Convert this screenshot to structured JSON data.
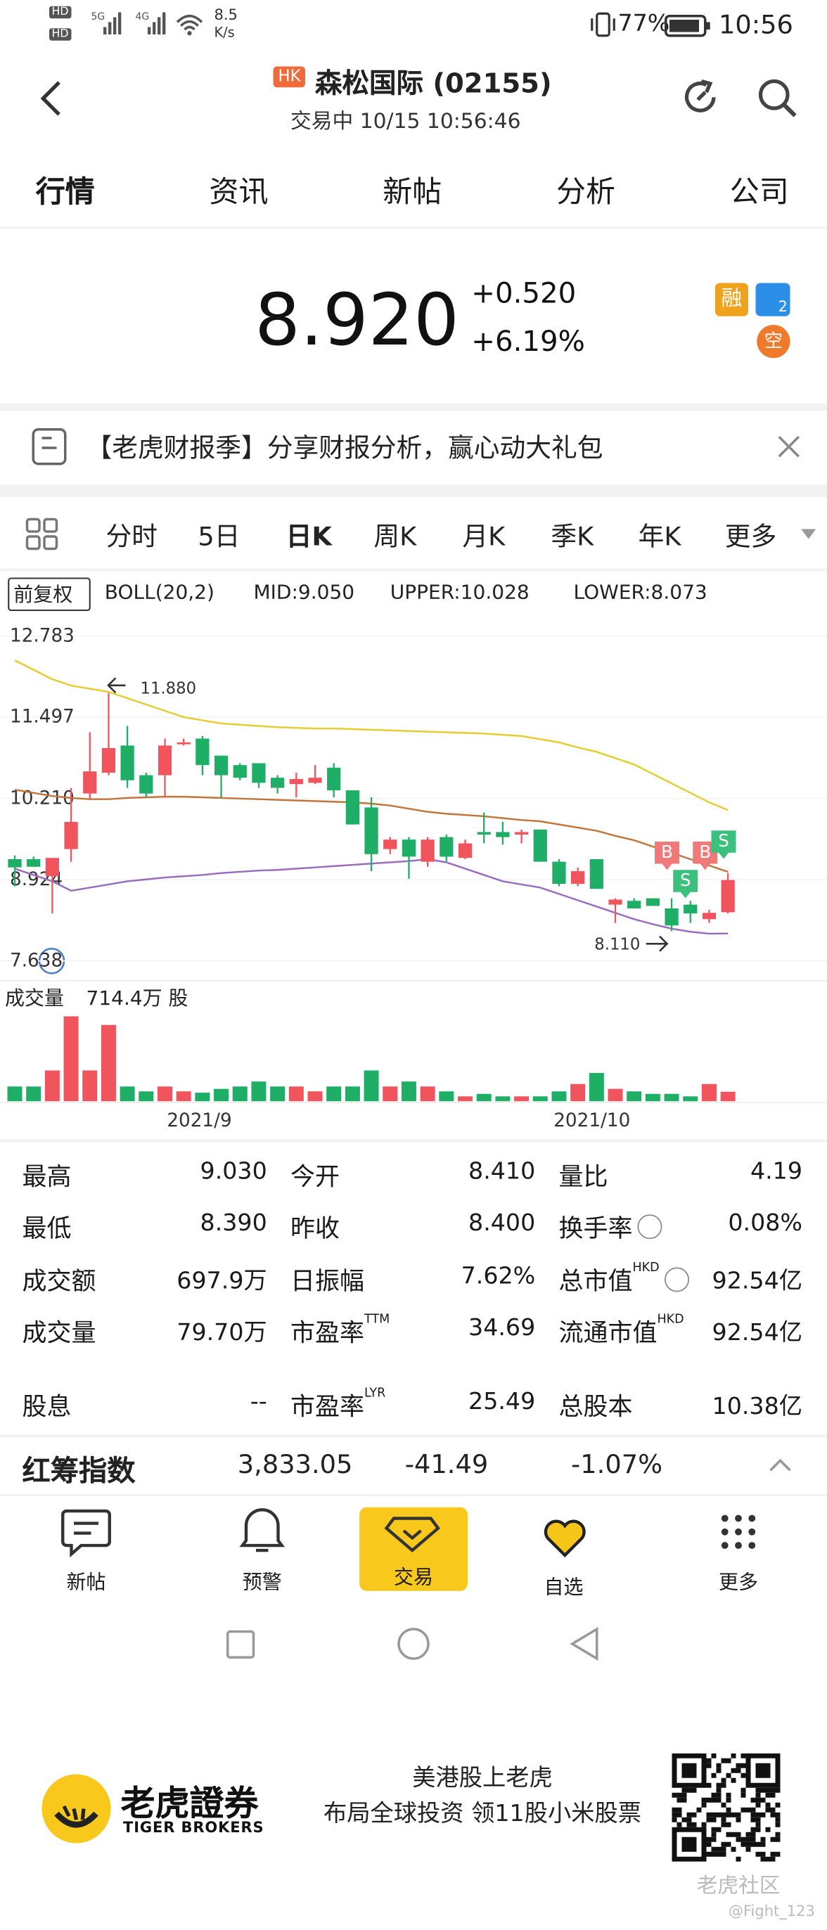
{
  "status": {
    "hd": [
      "HD",
      "HD"
    ],
    "net": [
      "5G",
      "4G"
    ],
    "speed": "8.5",
    "speed_unit": "K/s",
    "battery": "77%",
    "time": "10:56"
  },
  "header": {
    "badge": "HK",
    "name": "森松国际 (02155)",
    "status": "交易中 10/15 10:56:46"
  },
  "tabs": [
    "行情",
    "资讯",
    "新帖",
    "分析",
    "公司"
  ],
  "quote": {
    "price": "8.920",
    "change": "+0.520",
    "change_pct": "+6.19%",
    "badges": [
      "融",
      "空"
    ],
    "badge2": "2"
  },
  "banner": "【老虎财报季】分享财报分析，赢心动大礼包",
  "periods": [
    "分时",
    "5日",
    "日K",
    "周K",
    "月K",
    "季K",
    "年K",
    "更多"
  ],
  "chart_data": {
    "type": "candlestick",
    "adjust": "前复权",
    "indicator": "BOLL(20,2)",
    "mid_label": "MID:9.050",
    "upper_label": "UPPER:10.028",
    "lower_label": "LOWER:8.073",
    "ylim": [
      7.638,
      12.783
    ],
    "yticks": [
      12.783,
      11.497,
      {
        "value": 10.21,
        "label": "10.210"
      },
      8.924,
      7.638
    ],
    "up_color": "#f0545c",
    "down_color": "#1fae66",
    "ohlc": [
      [
        9.25,
        9.31,
        8.82,
        9.12
      ],
      [
        9.25,
        9.29,
        9.13,
        9.13
      ],
      [
        8.98,
        9.27,
        8.39,
        9.27
      ],
      [
        9.41,
        10.38,
        9.21,
        9.84
      ],
      [
        10.29,
        11.26,
        10.19,
        10.64
      ],
      [
        10.62,
        11.88,
        10.58,
        11.01
      ],
      [
        11.05,
        11.36,
        10.38,
        10.5
      ],
      [
        10.58,
        10.62,
        10.23,
        10.29
      ],
      [
        10.58,
        11.16,
        10.23,
        11.05
      ],
      [
        11.07,
        11.16,
        11.05,
        11.1
      ],
      [
        11.16,
        11.2,
        10.58,
        10.74
      ],
      [
        10.89,
        10.89,
        10.23,
        10.58
      ],
      [
        10.74,
        10.77,
        10.5,
        10.54
      ],
      [
        10.77,
        10.77,
        10.38,
        10.46
      ],
      [
        10.54,
        10.58,
        10.29,
        10.38
      ],
      [
        10.44,
        10.62,
        10.23,
        10.52
      ],
      [
        10.46,
        10.74,
        10.44,
        10.54
      ],
      [
        10.7,
        10.77,
        10.23,
        10.34
      ],
      [
        10.34,
        10.34,
        9.8,
        9.8
      ],
      [
        10.07,
        10.23,
        9.06,
        9.33
      ],
      [
        9.41,
        9.6,
        9.33,
        9.56
      ],
      [
        9.56,
        9.6,
        8.94,
        9.29
      ],
      [
        9.21,
        9.6,
        9.13,
        9.56
      ],
      [
        9.6,
        9.64,
        9.21,
        9.29
      ],
      [
        9.27,
        9.56,
        9.25,
        9.5
      ],
      [
        9.68,
        9.99,
        9.5,
        9.64
      ],
      [
        9.68,
        9.84,
        9.48,
        9.6
      ],
      [
        9.64,
        9.72,
        9.5,
        9.68
      ],
      [
        9.72,
        9.72,
        9.21,
        9.21
      ],
      [
        9.21,
        9.25,
        8.82,
        8.86
      ],
      [
        8.86,
        9.12,
        8.82,
        9.06
      ],
      [
        9.25,
        9.25,
        8.78,
        8.78
      ],
      [
        8.53,
        8.63,
        8.24,
        8.61
      ],
      [
        8.59,
        8.63,
        8.47,
        8.47
      ],
      [
        8.63,
        8.63,
        8.51,
        8.51
      ],
      [
        8.47,
        8.63,
        8.11,
        8.2
      ],
      [
        8.53,
        8.59,
        8.24,
        8.39
      ],
      [
        8.3,
        8.45,
        8.24,
        8.4
      ],
      [
        8.41,
        9.03,
        8.39,
        8.92
      ]
    ],
    "bands": [
      {
        "color": "#e6cc2e",
        "values": [
          12.4,
          12.25,
          12.1,
          12.0,
          11.95,
          11.9,
          11.8,
          11.7,
          11.6,
          11.5,
          11.45,
          11.4,
          11.38,
          11.36,
          11.34,
          11.33,
          11.32,
          11.32,
          11.31,
          11.3,
          11.29,
          11.28,
          11.27,
          11.26,
          11.25,
          11.24,
          11.22,
          11.2,
          11.15,
          11.1,
          11.02,
          10.95,
          10.85,
          10.75,
          10.6,
          10.45,
          10.3,
          10.15,
          10.028
        ]
      },
      {
        "color": "#c0763a",
        "values": [
          10.35,
          10.3,
          10.25,
          10.22,
          10.2,
          10.2,
          10.22,
          10.23,
          10.24,
          10.24,
          10.23,
          10.22,
          10.21,
          10.2,
          10.19,
          10.18,
          10.17,
          10.16,
          10.15,
          10.13,
          10.1,
          10.05,
          10.0,
          9.97,
          9.95,
          9.93,
          9.9,
          9.87,
          9.85,
          9.8,
          9.75,
          9.7,
          9.62,
          9.55,
          9.45,
          9.35,
          9.25,
          9.15,
          9.05
        ]
      },
      {
        "color": "#9a6bbf",
        "values": [
          9.1,
          9.0,
          8.9,
          8.75,
          8.8,
          8.85,
          8.9,
          8.93,
          8.96,
          8.98,
          9.0,
          9.03,
          9.05,
          9.07,
          9.08,
          9.1,
          9.12,
          9.14,
          9.16,
          9.18,
          9.2,
          9.22,
          9.25,
          9.2,
          9.1,
          9.0,
          8.9,
          8.85,
          8.8,
          8.7,
          8.6,
          8.5,
          8.4,
          8.3,
          8.22,
          8.15,
          8.1,
          8.07,
          8.073
        ]
      }
    ],
    "high_label": "11.880",
    "low_label": "8.110",
    "signals": [
      "B",
      "S",
      "B",
      "S"
    ],
    "volume_title": "成交量",
    "volume_label": "714.4万 股",
    "volumes": [
      124,
      124,
      259,
      714.4,
      259,
      642,
      124,
      83,
      124,
      83,
      72,
      104,
      124,
      166,
      124,
      124,
      83,
      124,
      124,
      259,
      124,
      166,
      124,
      83,
      41,
      62,
      41,
      41,
      41,
      83,
      145,
      238,
      104,
      83,
      62,
      62,
      41,
      145,
      79.7
    ],
    "x_labels": [
      "2021/9",
      "2021/10"
    ]
  },
  "stats": [
    [
      {
        "label": "最高",
        "value": "9.030"
      },
      {
        "label": "今开",
        "value": "8.410"
      },
      {
        "label": "量比",
        "value": "4.19"
      }
    ],
    [
      {
        "label": "最低",
        "value": "8.390"
      },
      {
        "label": "昨收",
        "value": "8.400"
      },
      {
        "label": "换手率",
        "value": "0.08%"
      }
    ],
    [
      {
        "label": "成交额",
        "value": "697.9万"
      },
      {
        "label": "日振幅",
        "value": "7.62%"
      },
      {
        "label": "总市值",
        "sup": "HKD",
        "value": "92.54亿"
      }
    ],
    [
      {
        "label": "成交量",
        "value": "79.70万"
      },
      {
        "label": "市盈率",
        "sup": "TTM",
        "value": "34.69"
      },
      {
        "label": "流通市值",
        "sup": "HKD",
        "value": "92.54亿"
      }
    ],
    [
      {
        "label": "股息",
        "value": "--"
      },
      {
        "label": "市盈率",
        "sup": "LYR",
        "value": "25.49"
      },
      {
        "label": "总股本",
        "value": "10.38亿"
      }
    ]
  ],
  "index": {
    "name": "红筹指数",
    "value": "3,833.05",
    "change": "-41.49",
    "pct": "-1.07%"
  },
  "nav": [
    "新帖",
    "预警",
    "交易",
    "自选",
    "更多"
  ],
  "ad": {
    "brand": "老虎證券",
    "brand_en": "TIGER BROKERS",
    "line1": "美港股上老虎",
    "line2": "布局全球投资 领11股小米股票",
    "watermark": "老虎社区",
    "user": "@Fight_123"
  }
}
